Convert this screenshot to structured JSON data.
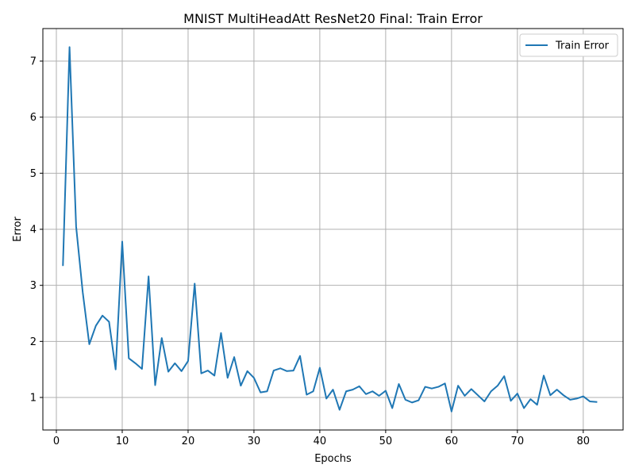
{
  "chart_data": {
    "type": "line",
    "title": "MNIST MultiHeadAtt ResNet20 Final: Train Error",
    "xlabel": "Epochs",
    "ylabel": "Error",
    "xlim": [
      -2.05,
      86.05
    ],
    "ylim": [
      0.42,
      7.58
    ],
    "xticks": [
      0,
      10,
      20,
      30,
      40,
      50,
      60,
      70,
      80
    ],
    "yticks": [
      1,
      2,
      3,
      4,
      5,
      6,
      7
    ],
    "grid": true,
    "legend_position": "top-right",
    "series": [
      {
        "name": "Train Error",
        "color": "#1f77b4",
        "x": [
          1,
          2,
          3,
          4,
          5,
          6,
          7,
          8,
          9,
          10,
          11,
          12,
          13,
          14,
          15,
          16,
          17,
          18,
          19,
          20,
          21,
          22,
          23,
          24,
          25,
          26,
          27,
          28,
          29,
          30,
          31,
          32,
          33,
          34,
          35,
          36,
          37,
          38,
          39,
          40,
          41,
          42,
          43,
          44,
          45,
          46,
          47,
          48,
          49,
          50,
          51,
          52,
          53,
          54,
          55,
          56,
          57,
          58,
          59,
          60,
          61,
          62,
          63,
          64,
          65,
          66,
          67,
          68,
          69,
          70,
          71,
          72,
          73,
          74,
          75,
          76,
          77,
          78,
          79,
          80,
          81,
          82
        ],
        "y": [
          3.36,
          7.25,
          4.05,
          2.88,
          1.95,
          2.28,
          2.46,
          2.35,
          1.5,
          3.78,
          1.7,
          1.61,
          1.51,
          3.16,
          1.22,
          2.06,
          1.46,
          1.61,
          1.47,
          1.65,
          3.03,
          1.43,
          1.48,
          1.39,
          2.15,
          1.35,
          1.72,
          1.21,
          1.47,
          1.35,
          1.09,
          1.11,
          1.48,
          1.52,
          1.47,
          1.48,
          1.74,
          1.05,
          1.11,
          1.53,
          0.98,
          1.14,
          0.78,
          1.11,
          1.14,
          1.2,
          1.06,
          1.11,
          1.03,
          1.12,
          0.81,
          1.24,
          0.96,
          0.91,
          0.95,
          1.19,
          1.16,
          1.19,
          1.25,
          0.75,
          1.21,
          1.03,
          1.15,
          1.04,
          0.93,
          1.11,
          1.21,
          1.38,
          0.94,
          1.07,
          0.81,
          0.97,
          0.87,
          1.39,
          1.04,
          1.14,
          1.04,
          0.96,
          0.98,
          1.02,
          0.93,
          0.92
        ]
      }
    ]
  }
}
